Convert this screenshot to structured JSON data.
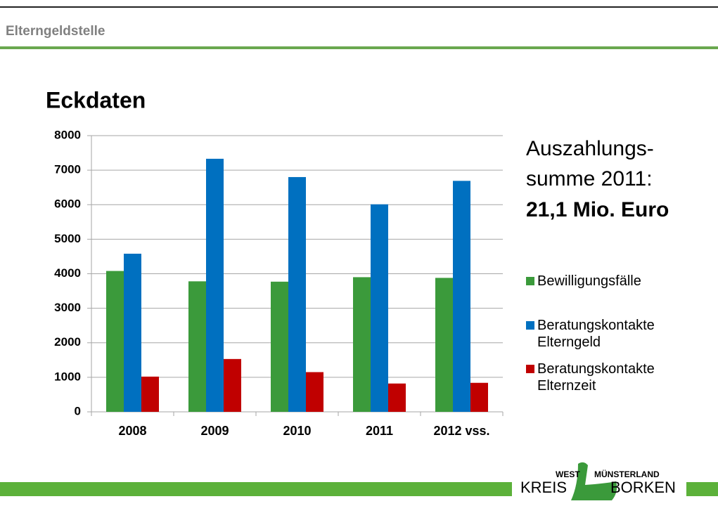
{
  "header": {
    "title": "Elterngeldstelle"
  },
  "chart_data": {
    "type": "bar",
    "title": "Eckdaten",
    "categories": [
      "2008",
      "2009",
      "2010",
      "2011",
      "2012 vss."
    ],
    "series": [
      {
        "name": "Bewilligungsfälle",
        "color": "#3b9a3b",
        "values": [
          4080,
          3780,
          3770,
          3900,
          3880
        ]
      },
      {
        "name": "Beratungskontakte Elterngeld",
        "color": "#0070c0",
        "values": [
          4580,
          7330,
          6800,
          6010,
          6690
        ]
      },
      {
        "name": "Beratungskontakte Elternzeit",
        "color": "#c00000",
        "values": [
          1020,
          1530,
          1150,
          820,
          840
        ]
      }
    ],
    "ylim": [
      0,
      8000
    ],
    "yticks": [
      0,
      1000,
      2000,
      3000,
      4000,
      5000,
      6000,
      7000,
      8000
    ],
    "grid": true,
    "annotations": [
      "Auszahlungs-",
      "summe 2011:",
      "21,1 Mio. Euro"
    ]
  },
  "logo": {
    "top_left": "WEST",
    "top_right": "MÜNSTERLAND",
    "bottom_left": "KREIS",
    "bottom_right": "BORKEN"
  }
}
